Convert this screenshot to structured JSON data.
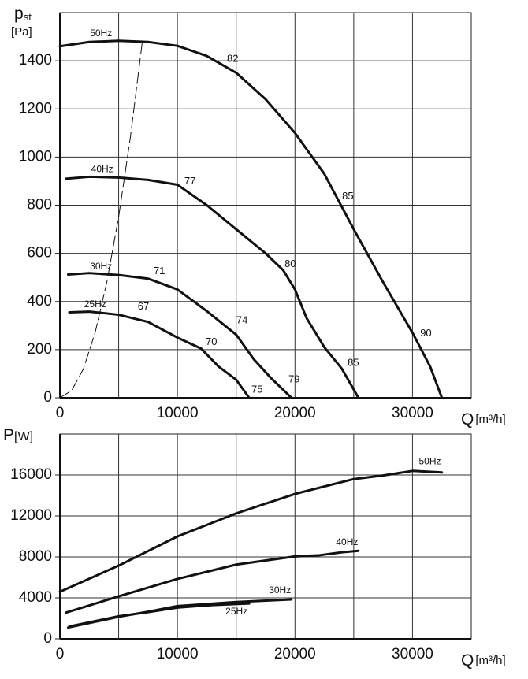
{
  "chart_data": [
    {
      "type": "line",
      "y_label": "p",
      "y_label_sub": "st",
      "y_unit": "[Pa]",
      "x_label": "Q",
      "x_unit": "[m³/h]",
      "xlim": [
        0,
        35000
      ],
      "ylim": [
        0,
        1600
      ],
      "xticks": [
        0,
        10000,
        20000,
        30000
      ],
      "yticks": [
        0,
        200,
        400,
        600,
        800,
        1000,
        1200,
        1400
      ],
      "grid": true,
      "series": [
        {
          "name": "50Hz",
          "color": "#111111",
          "label_pos": [
            3500,
            1512
          ],
          "x": [
            0,
            2500,
            5000,
            7500,
            10000,
            12500,
            15000,
            17500,
            20000,
            22500,
            25000,
            27500,
            30000,
            31500,
            32500
          ],
          "values": [
            1460,
            1478,
            1483,
            1478,
            1462,
            1420,
            1350,
            1240,
            1100,
            930,
            700,
            480,
            270,
            130,
            0
          ]
        },
        {
          "name": "40Hz",
          "color": "#111111",
          "label_pos": [
            3600,
            948
          ],
          "x": [
            500,
            2500,
            5000,
            7500,
            10000,
            12500,
            15000,
            17500,
            19000,
            20000,
            21000,
            22500,
            24000,
            25400
          ],
          "values": [
            910,
            918,
            915,
            905,
            885,
            800,
            700,
            600,
            530,
            450,
            330,
            210,
            120,
            0
          ]
        },
        {
          "name": "30Hz",
          "color": "#111111",
          "label_pos": [
            3500,
            544
          ],
          "x": [
            700,
            2500,
            5000,
            7500,
            10000,
            12500,
            15000,
            16500,
            18000,
            19700
          ],
          "values": [
            512,
            518,
            510,
            495,
            450,
            360,
            262,
            160,
            80,
            0
          ]
        },
        {
          "name": "25Hz",
          "color": "#111111",
          "label_pos": [
            3000,
            387
          ],
          "x": [
            800,
            2500,
            5000,
            7500,
            10000,
            12000,
            13500,
            15000,
            16100
          ],
          "values": [
            355,
            358,
            345,
            315,
            250,
            205,
            130,
            75,
            0
          ]
        },
        {
          "color": "#111111",
          "dashed": true,
          "x": [
            0,
            1000,
            2000,
            3000,
            4000,
            5000,
            6000,
            7000
          ],
          "values": [
            0,
            30,
            120,
            271,
            482,
            752,
            1083,
            1474
          ]
        }
      ],
      "annotations": [
        {
          "text": "82",
          "x": 14700,
          "y": 1407
        },
        {
          "text": "85",
          "x": 24500,
          "y": 836
        },
        {
          "text": "90",
          "x": 31140,
          "y": 266
        },
        {
          "text": "77",
          "x": 11070,
          "y": 898
        },
        {
          "text": "80",
          "x": 19600,
          "y": 554
        },
        {
          "text": "85",
          "x": 24970,
          "y": 144
        },
        {
          "text": "71",
          "x": 8460,
          "y": 525
        },
        {
          "text": "74",
          "x": 15500,
          "y": 321
        },
        {
          "text": "79",
          "x": 19930,
          "y": 75
        },
        {
          "text": "67",
          "x": 7110,
          "y": 377
        },
        {
          "text": "70",
          "x": 12890,
          "y": 230
        },
        {
          "text": "75",
          "x": 16780,
          "y": 33
        }
      ]
    },
    {
      "type": "line",
      "y_label": "P",
      "y_unit": "[W]",
      "x_label": "Q",
      "x_unit": "[m³/h]",
      "xlim": [
        0,
        35000
      ],
      "ylim": [
        0,
        20000
      ],
      "xticks": [
        0,
        10000,
        20000,
        30000
      ],
      "yticks": [
        0,
        4000,
        8000,
        12000,
        16000
      ],
      "grid": true,
      "series": [
        {
          "name": "50Hz",
          "color": "#111111",
          "label_pos": [
            31480,
            17300
          ],
          "x": [
            0,
            5000,
            10000,
            15000,
            20000,
            25000,
            27500,
            30000,
            32500
          ],
          "values": [
            4600,
            7150,
            10000,
            12250,
            14150,
            15600,
            15950,
            16400,
            16250
          ]
        },
        {
          "name": "40Hz",
          "color": "#111111",
          "label_pos": [
            24430,
            9390
          ],
          "x": [
            500,
            5000,
            10000,
            15000,
            20000,
            22000,
            24000,
            25400
          ],
          "values": [
            2550,
            4150,
            5850,
            7250,
            8050,
            8150,
            8450,
            8600
          ]
        },
        {
          "name": "30Hz",
          "color": "#111111",
          "label_pos": [
            18720,
            4690
          ],
          "x": [
            700,
            5000,
            7500,
            10000,
            15000,
            19700
          ],
          "values": [
            1100,
            2150,
            2650,
            3200,
            3600,
            3850
          ]
        },
        {
          "name": "25Hz",
          "color": "#111111",
          "label_pos": [
            15030,
            2620
          ],
          "x": [
            800,
            5000,
            7500,
            10000,
            13000,
            16100
          ],
          "values": [
            1200,
            2200,
            2600,
            3050,
            3300,
            3450
          ]
        }
      ]
    }
  ]
}
